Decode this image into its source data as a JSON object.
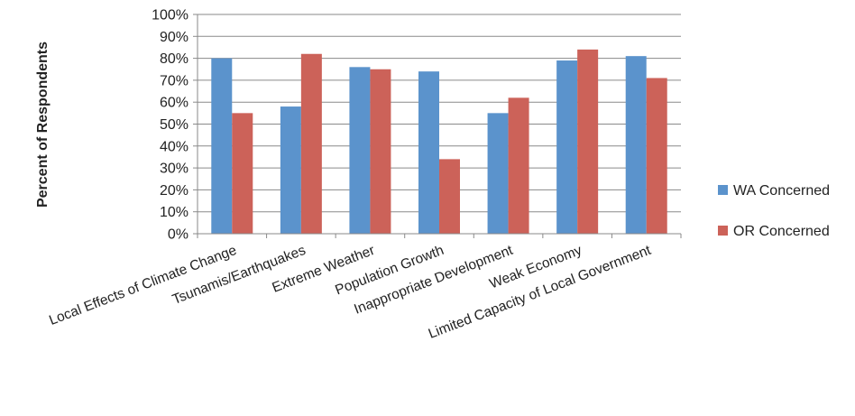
{
  "chart_data": {
    "type": "bar",
    "title": "",
    "xlabel": "",
    "ylabel": "Percent of Respondents",
    "ylim": [
      0,
      100
    ],
    "yticks": [
      "0%",
      "10%",
      "20%",
      "30%",
      "40%",
      "50%",
      "60%",
      "70%",
      "80%",
      "90%",
      "100%"
    ],
    "grid": true,
    "legend_position": "right",
    "categories": [
      "Local Effects of Climate Change",
      "Tsunamis/Earthquakes",
      "Extreme Weather",
      "Population Growth",
      "Inappropriate Development",
      "Weak Economy",
      "Limited Capacity of Local Government"
    ],
    "series": [
      {
        "name": "WA Concerned",
        "color": "#5B93CC",
        "values": [
          80,
          58,
          76,
          74,
          55,
          79,
          81
        ]
      },
      {
        "name": "OR Concerned",
        "color": "#CC6259",
        "values": [
          55,
          82,
          75,
          34,
          62,
          84,
          71
        ]
      }
    ]
  }
}
